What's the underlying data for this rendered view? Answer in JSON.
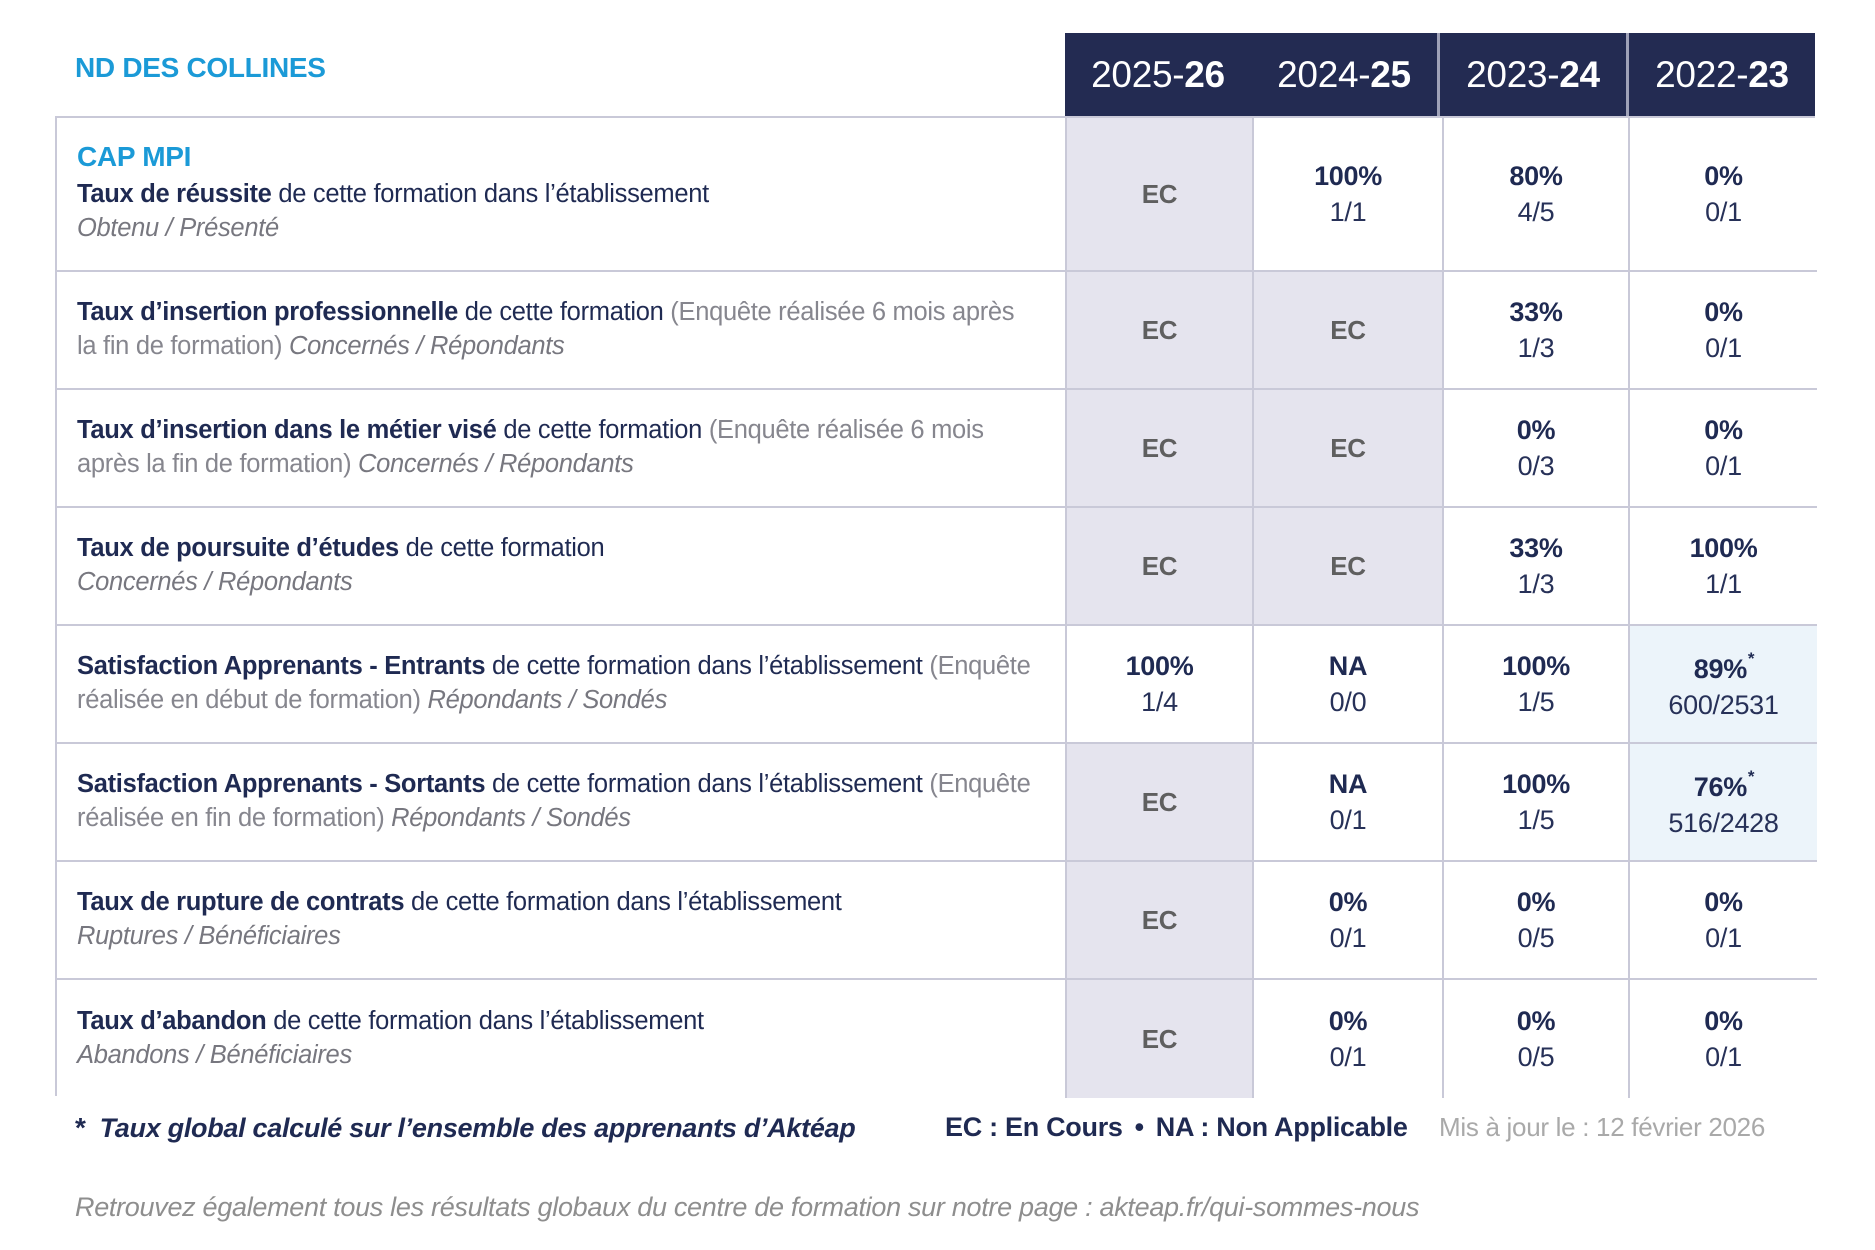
{
  "org": {
    "name": "ND DES COLLINES",
    "program": "CAP MPI"
  },
  "columns": [
    {
      "prefix": "2025-",
      "suffix": "26"
    },
    {
      "prefix": "2024-",
      "suffix": "25"
    },
    {
      "prefix": "2023-",
      "suffix": "24"
    },
    {
      "prefix": "2022-",
      "suffix": "23"
    }
  ],
  "rows": [
    {
      "title": "Taux de réussite",
      "rest": " de cette formation dans l’établissement",
      "note": "",
      "ratio": "Obtenu / Présenté",
      "cells": [
        {
          "type": "ec",
          "main": "EC"
        },
        {
          "type": "val",
          "main": "100%",
          "sub": "1/1"
        },
        {
          "type": "val",
          "main": "80%",
          "sub": "4/5"
        },
        {
          "type": "val",
          "main": "0%",
          "sub": "0/1"
        }
      ]
    },
    {
      "title": "Taux d’insertion professionnelle",
      "rest": " de cette formation ",
      "note": "(Enquête réalisée 6 mois après la fin de formation) ",
      "ratio": "Concernés / Répondants",
      "cells": [
        {
          "type": "ec",
          "main": "EC"
        },
        {
          "type": "ec",
          "main": "EC"
        },
        {
          "type": "val",
          "main": "33%",
          "sub": "1/3"
        },
        {
          "type": "val",
          "main": "0%",
          "sub": "0/1"
        }
      ]
    },
    {
      "title": "Taux d’insertion dans le métier visé",
      "rest": " de cette formation ",
      "note": "(Enquête réalisée 6 mois après la fin de formation) ",
      "ratio": "Concernés / Répondants",
      "cells": [
        {
          "type": "ec",
          "main": "EC"
        },
        {
          "type": "ec",
          "main": "EC"
        },
        {
          "type": "val",
          "main": "0%",
          "sub": "0/3"
        },
        {
          "type": "val",
          "main": "0%",
          "sub": "0/1"
        }
      ]
    },
    {
      "title": "Taux de poursuite d’études",
      "rest": " de cette formation",
      "note": "",
      "ratio": "Concernés / Répondants",
      "cells": [
        {
          "type": "ec",
          "main": "EC"
        },
        {
          "type": "ec",
          "main": "EC"
        },
        {
          "type": "val",
          "main": "33%",
          "sub": "1/3"
        },
        {
          "type": "val",
          "main": "100%",
          "sub": "1/1"
        }
      ]
    },
    {
      "title": "Satisfaction Apprenants - Entrants",
      "rest": " de cette formation dans l’établissement ",
      "note": "(Enquête réalisée en début de formation) ",
      "ratio": "Répondants / Sondés",
      "cells": [
        {
          "type": "val",
          "main": "100%",
          "sub": "1/4"
        },
        {
          "type": "val",
          "main": "NA",
          "sub": "0/0"
        },
        {
          "type": "val",
          "main": "100%",
          "sub": "1/5"
        },
        {
          "type": "star",
          "main": "89%",
          "star": "*",
          "sub": "600/2531"
        }
      ]
    },
    {
      "title": "Satisfaction Apprenants - Sortants",
      "rest": " de cette formation dans l’établissement ",
      "note": "(Enquête réalisée en fin de formation) ",
      "ratio": "Répondants / Sondés",
      "cells": [
        {
          "type": "ec",
          "main": "EC"
        },
        {
          "type": "val",
          "main": "NA",
          "sub": "0/1"
        },
        {
          "type": "val",
          "main": "100%",
          "sub": "1/5"
        },
        {
          "type": "star",
          "main": "76%",
          "star": "*",
          "sub": "516/2428"
        }
      ]
    },
    {
      "title": "Taux de rupture de contrats",
      "rest": " de cette formation dans l’établissement",
      "note": "",
      "ratio": "Ruptures / Bénéficiaires",
      "cells": [
        {
          "type": "ec",
          "main": "EC"
        },
        {
          "type": "val",
          "main": "0%",
          "sub": "0/1"
        },
        {
          "type": "val",
          "main": "0%",
          "sub": "0/5"
        },
        {
          "type": "val",
          "main": "0%",
          "sub": "0/1"
        }
      ]
    },
    {
      "title": "Taux d’abandon",
      "rest": " de cette formation dans l’établissement",
      "note": "",
      "ratio": "Abandons / Bénéficiaires",
      "cells": [
        {
          "type": "ec",
          "main": "EC"
        },
        {
          "type": "val",
          "main": "0%",
          "sub": "0/1"
        },
        {
          "type": "val",
          "main": "0%",
          "sub": "0/5"
        },
        {
          "type": "val",
          "main": "0%",
          "sub": "0/1"
        }
      ]
    }
  ],
  "footer": {
    "star": "*",
    "note": "Taux global calculé sur l’ensemble des apprenants d’Aktéap",
    "legend_ec": "EC : En Cours",
    "bullet": "•",
    "legend_na": "NA : Non Applicable",
    "updated": "Mis à jour le : 12 février 2026",
    "bottom": "Retrouvez également tous les résultats globaux du centre de formation sur notre page : akteap.fr/qui-sommes-nous"
  },
  "colors": {
    "accent_blue": "#1b9ad7",
    "navy": "#1f2a52",
    "header_bg": "#232b52",
    "ec_bg": "#e5e4ee",
    "star_bg": "#ecf4fa",
    "grid": "#c9c9d8"
  }
}
